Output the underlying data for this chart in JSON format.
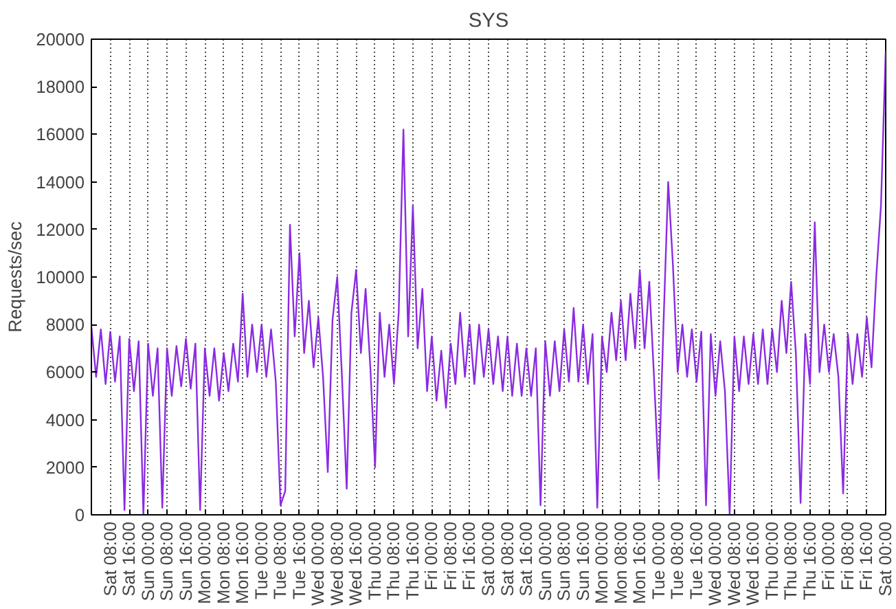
{
  "chart_data": {
    "type": "line",
    "title": "SYS",
    "ylabel": "Requests/sec",
    "categories": [
      null,
      null,
      null,
      null,
      "Sat 08:00",
      null,
      null,
      null,
      "Sat 16:00",
      null,
      null,
      null,
      "Sun 00:00",
      null,
      null,
      null,
      "Sun 08:00",
      null,
      null,
      null,
      "Sun 16:00",
      null,
      null,
      null,
      "Mon 00:00",
      null,
      null,
      null,
      "Mon 08:00",
      null,
      null,
      null,
      "Mon 16:00",
      null,
      null,
      null,
      "Tue 00:00",
      null,
      null,
      null,
      "Tue 08:00",
      null,
      null,
      null,
      "Tue 16:00",
      null,
      null,
      null,
      "Wed 00:00",
      null,
      null,
      null,
      "Wed 08:00",
      null,
      null,
      null,
      "Wed 16:00",
      null,
      null,
      null,
      "Thu 00:00",
      null,
      null,
      null,
      "Thu 08:00",
      null,
      null,
      null,
      "Thu 16:00",
      null,
      null,
      null,
      "Fri 00:00",
      null,
      null,
      null,
      "Fri 08:00",
      null,
      null,
      null,
      "Fri 16:00",
      null,
      null,
      null,
      "Sat 00:00",
      null,
      null,
      null,
      "Sat 08:00",
      null,
      null,
      null,
      "Sat 16:00",
      null,
      null,
      null,
      "Sun 00:00",
      null,
      null,
      null,
      "Sun 08:00",
      null,
      null,
      null,
      "Sun 16:00",
      null,
      null,
      null,
      "Mon 00:00",
      null,
      null,
      null,
      "Mon 08:00",
      null,
      null,
      null,
      "Mon 16:00",
      null,
      null,
      null,
      "Tue 00:00",
      null,
      null,
      null,
      "Tue 08:00",
      null,
      null,
      null,
      "Tue 16:00",
      null,
      null,
      null,
      "Wed 00:00",
      null,
      null,
      null,
      "Wed 08:00",
      null,
      null,
      null,
      "Wed 16:00",
      null,
      null,
      null,
      "Thu 00:00",
      null,
      null,
      null,
      "Thu 08:00",
      null,
      null,
      null,
      "Thu 16:00",
      null,
      null,
      null,
      "Fri 00:00",
      null,
      null,
      null,
      "Fri 08:00",
      null,
      null,
      null,
      "Fri 16:00",
      null,
      null,
      null,
      "Sat 00:00"
    ],
    "series": [
      {
        "color": "#8a2be2",
        "values": [
          7900,
          5800,
          7800,
          5500,
          7700,
          5600,
          7500,
          200,
          7400,
          5200,
          7300,
          0,
          7200,
          5000,
          7000,
          300,
          7000,
          5000,
          7100,
          5400,
          7400,
          5300,
          7200,
          200,
          7000,
          5000,
          7000,
          4800,
          6800,
          5200,
          7200,
          5600,
          9300,
          5800,
          8000,
          6000,
          8000,
          5800,
          7800,
          5600,
          400,
          1000,
          12200,
          7500,
          11000,
          6800,
          9000,
          6200,
          8300,
          5800,
          1800,
          8200,
          10000,
          5800,
          1100,
          8500,
          10300,
          6800,
          9500,
          6200,
          2000,
          8500,
          5800,
          8000,
          5500,
          8500,
          16200,
          7500,
          13000,
          7000,
          9500,
          5200,
          7500,
          4800,
          6900,
          4500,
          7200,
          5500,
          8500,
          5800,
          8000,
          5500,
          8000,
          5800,
          7800,
          5500,
          7500,
          5200,
          7500,
          5000,
          7200,
          5000,
          7000,
          5000,
          7000,
          400,
          7300,
          5000,
          7300,
          5200,
          7800,
          5600,
          8700,
          5600,
          8000,
          5500,
          7600,
          300,
          7500,
          6000,
          8500,
          6500,
          9000,
          6500,
          9300,
          7000,
          10300,
          7000,
          9800,
          5800,
          1500,
          8000,
          14000,
          10500,
          6000,
          8000,
          5800,
          7800,
          5600,
          7700,
          400,
          7600,
          5000,
          7300,
          5200,
          0,
          7500,
          5200,
          7500,
          5500,
          7600,
          5500,
          7800,
          5500,
          7800,
          6000,
          9000,
          6800,
          9800,
          6800,
          500,
          7600,
          5500,
          12300,
          6000,
          8000,
          6000,
          7600,
          5800,
          900,
          7600,
          5500,
          7600,
          5800,
          8300,
          6200,
          10000,
          13000,
          19500
        ]
      }
    ],
    "ylim": [
      0,
      20000
    ],
    "yticks": [
      0,
      2000,
      4000,
      6000,
      8000,
      10000,
      12000,
      14000,
      16000,
      18000,
      20000
    ],
    "grid": "x"
  }
}
